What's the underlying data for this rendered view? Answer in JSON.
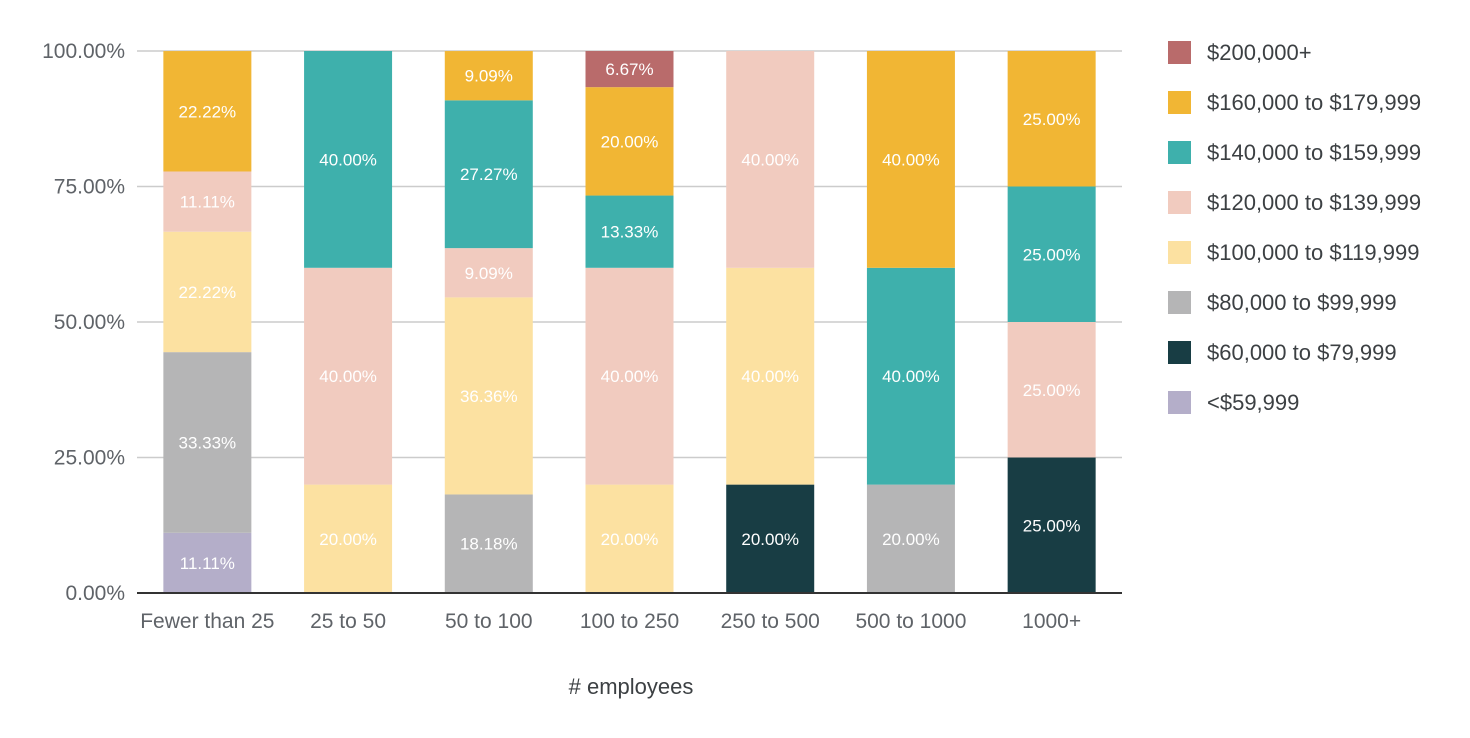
{
  "chart_data": {
    "type": "bar",
    "stacked": true,
    "title": "",
    "xlabel": "# employees",
    "ylabel": "",
    "ylim": [
      0,
      100
    ],
    "y_ticks": [
      "0.00%",
      "25.00%",
      "50.00%",
      "75.00%",
      "100.00%"
    ],
    "grid": true,
    "legend_position": "right",
    "categories": [
      "Fewer than 25",
      "25 to 50",
      "50 to 100",
      "100 to 250",
      "250 to 500",
      "500 to 1000",
      "1000+"
    ],
    "series": [
      {
        "name": "<$59,999",
        "color": "#b4aec9",
        "label_color": "#ffffff",
        "values": [
          11.11,
          0,
          0,
          0,
          0,
          0,
          0
        ]
      },
      {
        "name": "$60,000 to $79,999",
        "color": "#183d44",
        "label_color": "#ffffff",
        "values": [
          0,
          0,
          0,
          0,
          20.0,
          0,
          25.0
        ]
      },
      {
        "name": "$80,000 to $99,999",
        "color": "#b5b5b6",
        "label_color": "#ffffff",
        "values": [
          33.33,
          0,
          18.18,
          0,
          0,
          20.0,
          0
        ]
      },
      {
        "name": "$100,000 to $119,999",
        "color": "#fce1a1",
        "label_color": "#ffffff",
        "values": [
          22.22,
          20.0,
          36.36,
          20.0,
          40.0,
          0,
          0
        ]
      },
      {
        "name": "$120,000 to $139,999",
        "color": "#f1cbbf",
        "label_color": "#ffffff",
        "values": [
          11.11,
          40.0,
          9.09,
          40.0,
          40.0,
          0,
          25.0
        ]
      },
      {
        "name": "$140,000 to $159,999",
        "color": "#3eb0ac",
        "label_color": "#ffffff",
        "values": [
          0,
          40.0,
          27.27,
          13.33,
          0,
          40.0,
          25.0
        ]
      },
      {
        "name": "$160,000 to $179,999",
        "color": "#f1b634",
        "label_color": "#ffffff",
        "values": [
          22.22,
          0,
          9.09,
          20.0,
          0,
          40.0,
          25.0
        ]
      },
      {
        "name": "$200,000+",
        "color": "#b96b6b",
        "label_color": "#ffffff",
        "values": [
          0,
          0,
          0,
          6.67,
          0,
          0,
          0
        ]
      }
    ]
  }
}
